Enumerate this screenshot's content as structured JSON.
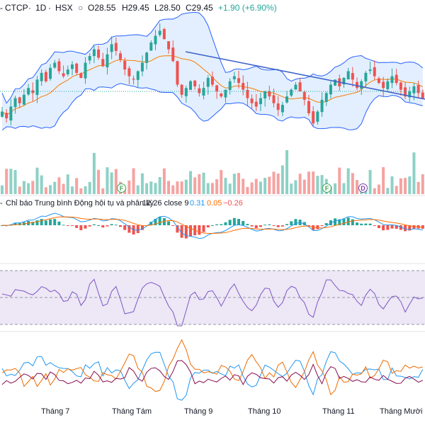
{
  "header": {
    "symbol": "CTCP",
    "interval": "1D",
    "exchange": "HSX",
    "open": "O28.55",
    "high": "H29.45",
    "low": "L28.50",
    "close": "C29.45",
    "change": "+1.90 (+6.90%)",
    "separator": "·"
  },
  "macd_label": {
    "prefix": "-",
    "name": "Chỉ báo Trung bình Động hội tụ và phân kỳ",
    "params": "12 26 close 9",
    "v1": "0.31",
    "v2": "0.05",
    "v3": "−0.26"
  },
  "badges": [
    "F",
    "F",
    "D"
  ],
  "x_axis": [
    "Tháng 7",
    "Tháng Tám",
    "Tháng 9",
    "Tháng 10",
    "Tháng 11",
    "Tháng Mười hai"
  ],
  "colors": {
    "up": "#26a69a",
    "down": "#ef5350",
    "bb": "#2962ff",
    "bb_fill": "#e3efff",
    "ma": "#f57c00",
    "trend": "#3f64c8",
    "rsi": "#7e57c2",
    "rsi_fill": "#ede7f6",
    "macd_line": "#2196f3",
    "signal_line": "#ff6d00",
    "dmi_plus": "#26a69a",
    "adx": "#880e4f",
    "dmi_minus": "#ef6c00"
  },
  "chart_data": {
    "type": "candlestick",
    "series_close_sample": [
      20.5,
      20.1,
      20.8,
      21.3,
      21.0,
      21.5,
      21.9,
      21.6,
      22.4,
      22.8,
      22.3,
      23.1,
      23.4,
      22.9,
      22.6,
      23.0,
      23.3,
      22.8,
      22.5,
      23.4,
      23.8,
      24.2,
      23.7,
      23.2,
      23.9,
      24.5,
      24.1,
      23.6,
      23.0,
      22.6,
      22.4,
      22.9,
      23.4,
      24.0,
      24.6,
      25.0,
      25.3,
      24.8,
      24.2,
      23.5,
      22.1,
      21.5,
      21.9,
      22.3,
      22.0,
      21.6,
      21.9,
      22.5,
      22.1,
      21.7,
      21.4,
      21.8,
      22.3,
      22.6,
      22.2,
      21.8,
      21.3,
      21.0,
      20.8,
      21.3,
      21.7,
      21.4,
      21.0,
      20.6,
      20.9,
      21.4,
      21.8,
      22.1,
      21.7,
      21.2,
      20.4,
      19.8,
      20.5,
      21.2,
      21.6,
      22.1,
      22.4,
      22.0,
      22.5,
      22.9,
      22.4,
      21.9,
      22.3,
      22.8,
      23.0,
      22.6,
      22.2,
      21.9,
      22.3,
      22.6,
      22.2,
      21.8,
      21.4,
      21.7,
      22.0,
      21.6,
      21.3
    ]
  }
}
